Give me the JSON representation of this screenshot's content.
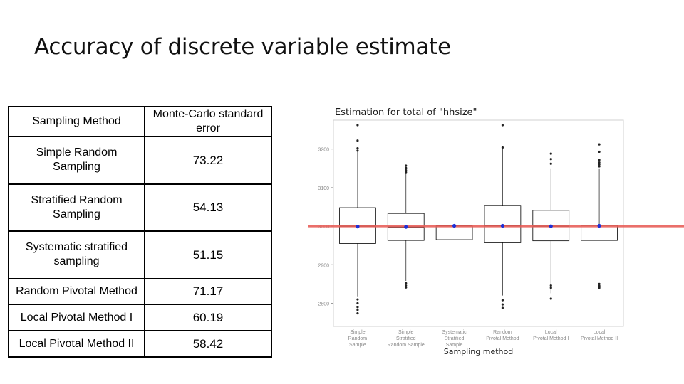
{
  "slide": {
    "title": "Accuracy of discrete variable estimate"
  },
  "table": {
    "headers": [
      "Sampling Method",
      "Monte-Carlo standard error"
    ],
    "rows": [
      {
        "method": "Simple Random Sampling",
        "value": "73.22"
      },
      {
        "method": "Stratified Random Sampling",
        "value": "54.13"
      },
      {
        "method": "Systematic stratified sampling",
        "value": "51.15"
      },
      {
        "method": "Random Pivotal Method",
        "value": "71.17"
      },
      {
        "method": "Local Pivotal Method I",
        "value": "60.19"
      },
      {
        "method": "Local Pivotal Method II",
        "value": "58.42"
      }
    ]
  },
  "chart_data": {
    "type": "boxplot",
    "title": "Estimation for total of \"hhsize\"",
    "xlabel": "Sampling method",
    "ylabel": "",
    "ylim": [
      2740,
      3275
    ],
    "yticks": [
      2800,
      2900,
      3000,
      3100,
      3200
    ],
    "ytick_labels": [
      "2800",
      "2900",
      "3000",
      "3100",
      "3200"
    ],
    "reference_line": 3000,
    "grid": false,
    "colors": {
      "reference_line": "#e8605a",
      "mean_point": "#1f2fd6",
      "box": "#000000"
    },
    "boxes": [
      {
        "name": "Simple Random Sample",
        "label_lines": [
          "Simple",
          "Random",
          "Sample"
        ],
        "q1": 2955,
        "median": 3000,
        "q3": 3048,
        "whisker_low": 2818,
        "whisker_high": 3196,
        "mean": 2999,
        "outliers": [
          3262,
          3222,
          3202,
          3196,
          2810,
          2800,
          2790,
          2783,
          2774
        ]
      },
      {
        "name": "Simple Stratified Random Sample",
        "label_lines": [
          "Simple",
          "Stratified",
          "Random Sample"
        ],
        "q1": 2963,
        "median": 2998,
        "q3": 3033,
        "whisker_low": 2858,
        "whisker_high": 3138,
        "mean": 2998,
        "outliers": [
          3157,
          3151,
          3145,
          3140,
          2852,
          2846,
          2841
        ]
      },
      {
        "name": "Systematic Stratified Sample",
        "label_lines": [
          "Systematic",
          "Stratified",
          "Sample"
        ],
        "q1": 2965,
        "median": 3001,
        "q3": 3001,
        "whisker_low": 2965,
        "whisker_high": 3001,
        "mean": 3001,
        "outliers": []
      },
      {
        "name": "Random Pivotal Method",
        "label_lines": [
          "Random",
          "Pivotal Method"
        ],
        "q1": 2957,
        "median": 3001,
        "q3": 3054,
        "whisker_low": 2820,
        "whisker_high": 3200,
        "mean": 3001,
        "outliers": [
          3262,
          3204,
          2808,
          2797,
          2788
        ]
      },
      {
        "name": "Local Pivotal Method I",
        "label_lines": [
          "Local",
          "Pivotal Method I"
        ],
        "q1": 2962,
        "median": 3000,
        "q3": 3041,
        "whisker_low": 2826,
        "whisker_high": 3150,
        "mean": 3000,
        "outliers": [
          3188,
          3174,
          3162,
          2846,
          2840,
          2812
        ]
      },
      {
        "name": "Local Pivotal Method II",
        "label_lines": [
          "Local",
          "Pivotal Method II"
        ],
        "q1": 2963,
        "median": 3002,
        "q3": 3002,
        "whisker_low": 2963,
        "whisker_high": 3150,
        "mean": 3001,
        "outliers": [
          3212,
          3193,
          3172,
          3165,
          3160,
          3155,
          2850,
          2845,
          2840
        ]
      }
    ]
  }
}
